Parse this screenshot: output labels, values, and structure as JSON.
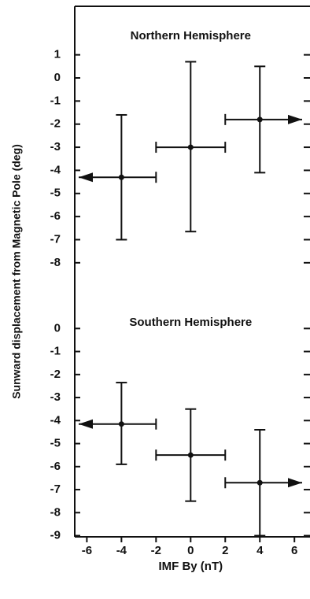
{
  "chart_data": [
    {
      "type": "errorbar",
      "title": "Northern Hemisphere",
      "ylabel": "Sunward displacement from Magnetic Pole (deg)",
      "x": [
        -4,
        0,
        4
      ],
      "values": [
        -4.3,
        -3.0,
        -1.8
      ],
      "y_low": [
        -7.0,
        -6.65,
        -4.1
      ],
      "y_high": [
        -1.6,
        0.7,
        0.5
      ],
      "x_low": [
        null,
        -2,
        2
      ],
      "x_high": [
        -2,
        2,
        null
      ],
      "color": "#111111",
      "xlim": [
        -6.7,
        6.9
      ],
      "ylim": [
        -9.3,
        3.1
      ],
      "yticks": [
        1,
        0,
        -1,
        -2,
        -3,
        -4,
        -5,
        -6,
        -7,
        -8
      ]
    },
    {
      "type": "errorbar",
      "title": "Southern Hemisphere",
      "xlabel": "IMF By (nT)",
      "x": [
        -4,
        0,
        4
      ],
      "values": [
        -4.15,
        -5.5,
        -6.7
      ],
      "y_low": [
        -5.9,
        -7.5,
        -9.0
      ],
      "y_high": [
        -2.35,
        -3.5,
        -4.4
      ],
      "x_low": [
        null,
        -2,
        2
      ],
      "x_high": [
        -2,
        2,
        null
      ],
      "color": "#111111",
      "xlim": [
        -6.7,
        6.9
      ],
      "ylim": [
        -9.05,
        1.55
      ],
      "xticks": [
        -6,
        -4,
        -2,
        0,
        2,
        4,
        6
      ],
      "yticks": [
        0,
        -1,
        -2,
        -3,
        -4,
        -5,
        -6,
        -7,
        -8,
        -9
      ]
    }
  ]
}
